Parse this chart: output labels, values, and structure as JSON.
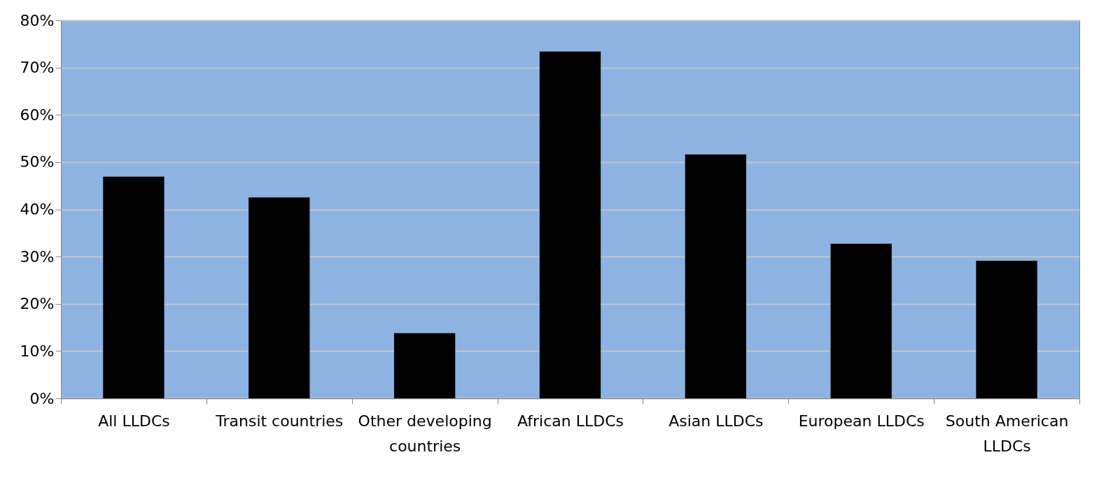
{
  "chart_data": {
    "type": "bar",
    "categories": [
      "All LLDCs",
      "Transit countries",
      "Other developing countries",
      "African LLDCs",
      "Asian LLDCs",
      "European LLDCs",
      "South American LLDCs"
    ],
    "values": [
      46.9,
      42.5,
      13.8,
      73.4,
      51.6,
      32.7,
      29.1
    ],
    "color": "#000000",
    "ylim": [
      0,
      80
    ],
    "yticks": [
      {
        "value": 0,
        "label": "0%"
      },
      {
        "value": 10,
        "label": "10%"
      },
      {
        "value": 20,
        "label": "20%"
      },
      {
        "value": 30,
        "label": "30%"
      },
      {
        "value": 40,
        "label": "40%"
      },
      {
        "value": 50,
        "label": "50%"
      },
      {
        "value": 60,
        "label": "60%"
      },
      {
        "value": 70,
        "label": "70%"
      },
      {
        "value": 80,
        "label": "80%"
      }
    ],
    "grid": "y"
  }
}
